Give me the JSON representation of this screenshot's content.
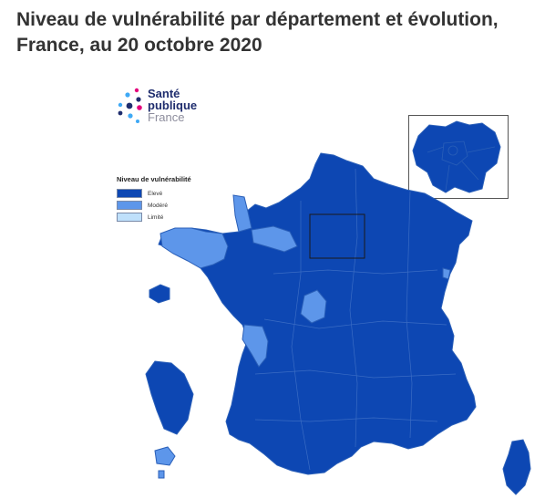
{
  "title": "Niveau de vulnérabilité par département et évolution, France, au 20 octobre 2020",
  "logo": {
    "line1": "Santé",
    "line2": "publique",
    "line3": "France"
  },
  "legend": {
    "title": "Niveau de vulnérabilité",
    "items": [
      {
        "label": "Elevé",
        "color": "#0d47b3"
      },
      {
        "label": "Modéré",
        "color": "#5d96ea"
      },
      {
        "label": "Limité",
        "color": "#bfe0fb"
      }
    ]
  },
  "colors": {
    "high": "#0d47b3",
    "moderate": "#5d96ea",
    "border": "#2a5fb8"
  }
}
